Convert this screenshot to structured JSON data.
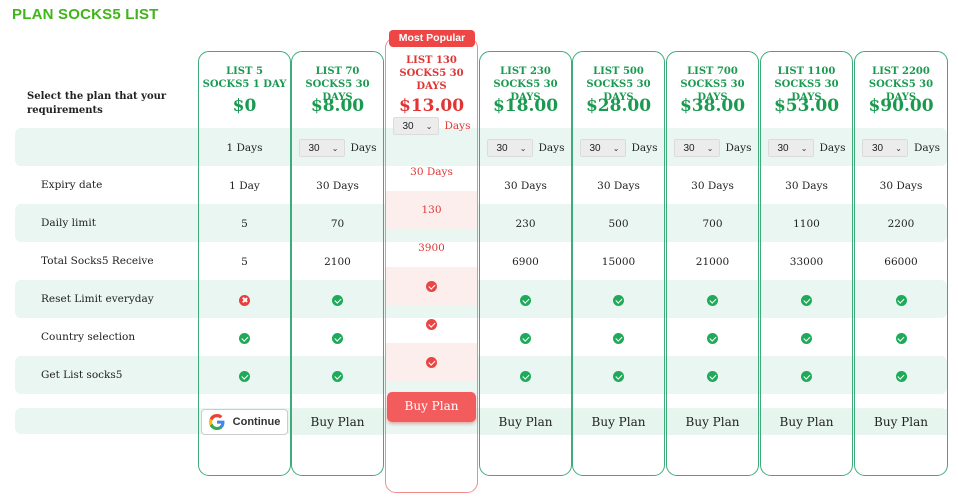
{
  "page": {
    "title": "PLAN SOCKS5 LIST",
    "prompt": "Select the plan that your requirements"
  },
  "rows": {
    "labels": [
      "Expiry date",
      "Daily limit",
      "Total Socks5 Receive",
      "Reset Limit everyday",
      "Country selection",
      "Get List socks5"
    ]
  },
  "badge": {
    "label": "Most Popular"
  },
  "select_suffix": "Days",
  "plans": [
    {
      "title": "LIST 5 SOCKS5 1 DAY",
      "price": "$0",
      "days_text": "1 Days",
      "expiry": "1 Day",
      "daily": "5",
      "total": "5",
      "reset": "no",
      "country": "yes",
      "getlist": "yes",
      "cta": "Continue",
      "cta_type": "google"
    },
    {
      "title": "LIST 70 SOCKS5 30 DAYS",
      "price": "$8.00",
      "days_value": "30",
      "expiry": "30 Days",
      "daily": "70",
      "total": "2100",
      "reset": "yes",
      "country": "yes",
      "getlist": "yes",
      "cta": "Buy Plan"
    },
    {
      "title": "LIST 130 SOCKS5 30 DAYS",
      "price": "$13.00",
      "days_value": "30",
      "expiry": "30 Days",
      "daily": "130",
      "total": "3900",
      "reset": "yes",
      "country": "yes",
      "getlist": "yes",
      "cta": "Buy Plan",
      "popular": true
    },
    {
      "title": "LIST 230 SOCKS5 30 DAYS",
      "price": "$18.00",
      "days_value": "30",
      "expiry": "30 Days",
      "daily": "230",
      "total": "6900",
      "reset": "yes",
      "country": "yes",
      "getlist": "yes",
      "cta": "Buy Plan"
    },
    {
      "title": "LIST 500 SOCKS5 30 DAYS",
      "price": "$28.00",
      "days_value": "30",
      "expiry": "30 Days",
      "daily": "500",
      "total": "15000",
      "reset": "yes",
      "country": "yes",
      "getlist": "yes",
      "cta": "Buy Plan"
    },
    {
      "title": "LIST 700 SOCKS5 30 DAYS",
      "price": "$38.00",
      "days_value": "30",
      "expiry": "30 Days",
      "daily": "700",
      "total": "21000",
      "reset": "yes",
      "country": "yes",
      "getlist": "yes",
      "cta": "Buy Plan"
    },
    {
      "title": "LIST 1100 SOCKS5 30 DAYS",
      "price": "$53.00",
      "days_value": "30",
      "expiry": "30 Days",
      "daily": "1100",
      "total": "33000",
      "reset": "yes",
      "country": "yes",
      "getlist": "yes",
      "cta": "Buy Plan"
    },
    {
      "title": "LIST 2200 SOCKS5 30 DAYS",
      "price": "$90.00",
      "days_value": "30",
      "expiry": "30 Days",
      "daily": "2200",
      "total": "66000",
      "reset": "yes",
      "country": "yes",
      "getlist": "yes",
      "cta": "Buy Plan"
    }
  ],
  "colors": {
    "brand_green": "#3fb618",
    "price_green": "#1a9a50",
    "popular_red": "#e03535",
    "check_green": "#1faa59",
    "band": "#eaf6f1"
  }
}
